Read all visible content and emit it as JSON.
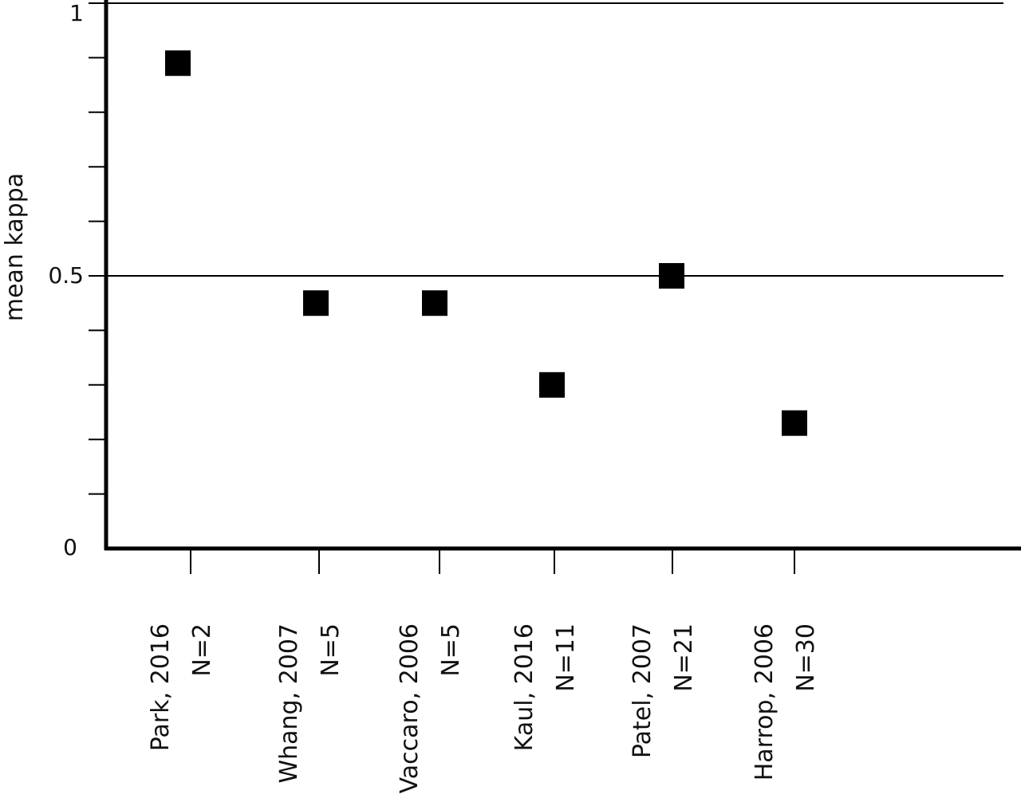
{
  "chart_data": {
    "type": "scatter",
    "title": "",
    "xlabel": "",
    "ylabel": "mean kappa",
    "ylim": [
      0,
      1
    ],
    "y_tick_labels": [
      {
        "value": 0,
        "label": "0"
      },
      {
        "value": 0.5,
        "label": "0.5"
      },
      {
        "value": 1,
        "label": "1"
      }
    ],
    "y_minor_ticks": [
      0.1,
      0.2,
      0.3,
      0.4,
      0.6,
      0.7,
      0.8,
      0.9
    ],
    "gridlines_at": [
      0.5,
      1
    ],
    "categories": [
      {
        "line1": "Park, 2016",
        "line2": "N=2"
      },
      {
        "line1": "Whang, 2007",
        "line2": "N=5"
      },
      {
        "line1": "Vaccaro, 2006",
        "line2": "N=5"
      },
      {
        "line1": "Kaul, 2016",
        "line2": "N=11"
      },
      {
        "line1": "Patel, 2007",
        "line2": "N=21"
      },
      {
        "line1": "Harrop, 2006",
        "line2": "N=30"
      }
    ],
    "values": [
      0.89,
      0.45,
      0.45,
      0.3,
      0.5,
      0.23
    ],
    "marker": "square",
    "marker_color": "#000000",
    "grid": true
  }
}
